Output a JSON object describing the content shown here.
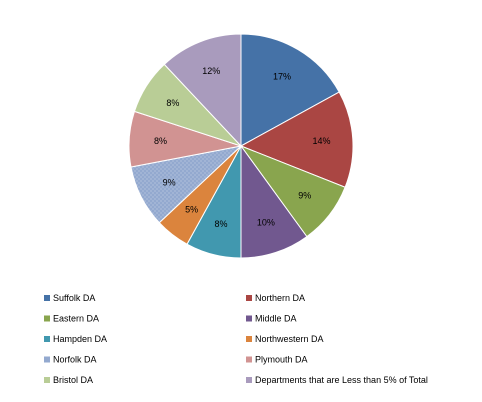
{
  "chart_data": {
    "type": "pie",
    "title": "",
    "legend_position": "bottom",
    "slices": [
      {
        "name": "Suffolk DA",
        "value": 17,
        "label": "17%",
        "color": "#4572A7"
      },
      {
        "name": "Northern DA",
        "value": 14,
        "label": "14%",
        "color": "#AA4643"
      },
      {
        "name": "Eastern DA",
        "value": 9,
        "label": "9%",
        "color": "#89A54E"
      },
      {
        "name": "Middle DA",
        "value": 10,
        "label": "10%",
        "color": "#71588F"
      },
      {
        "name": "Hampden DA",
        "value": 8,
        "label": "8%",
        "color": "#4198AF"
      },
      {
        "name": "Northwestern DA",
        "value": 5,
        "label": "5%",
        "color": "#DB843D"
      },
      {
        "name": "Norfolk DA",
        "value": 9,
        "label": "9%",
        "color": "#93A9CF"
      },
      {
        "name": "Plymouth DA",
        "value": 8,
        "label": "8%",
        "color": "#D19392"
      },
      {
        "name": "Bristol DA",
        "value": 8,
        "label": "8%",
        "color": "#B9CD96"
      },
      {
        "name": "Departments that are Less than 5% of Total",
        "value": 12,
        "label": "12%",
        "color": "#A99BBD"
      }
    ]
  }
}
